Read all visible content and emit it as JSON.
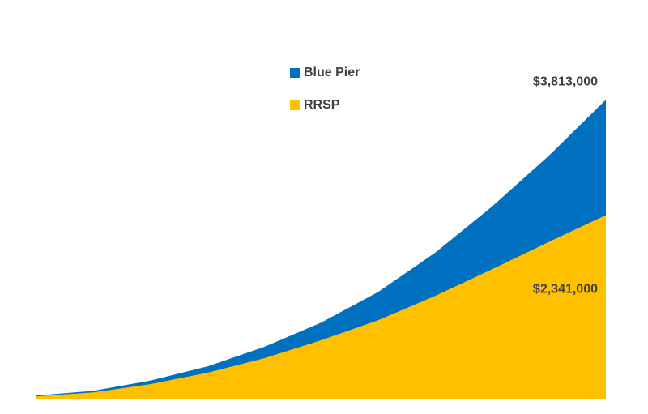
{
  "chart_data": {
    "type": "area",
    "categories": [
      null,
      null,
      null,
      null,
      null,
      null,
      null,
      null,
      null,
      null,
      null
    ],
    "series": [
      {
        "name": "Blue Pier",
        "color": "#0070c0",
        "values": [
          40000,
          100000,
          230000,
          410000,
          660000,
          970000,
          1360000,
          1860000,
          2450000,
          3100000,
          3813000
        ],
        "value_labels": [
          null,
          null,
          null,
          null,
          null,
          null,
          null,
          null,
          null,
          null,
          "$3,813,000"
        ]
      },
      {
        "name": "RRSP",
        "color": "#ffc000",
        "values": [
          30000,
          80000,
          185000,
          330000,
          515000,
          745000,
          1000000,
          1310000,
          1650000,
          2000000,
          2341000
        ],
        "value_labels": [
          null,
          null,
          null,
          null,
          null,
          null,
          null,
          null,
          null,
          null,
          "$2,341,000"
        ]
      }
    ],
    "ylim": [
      0,
      4000000
    ],
    "legend": "top-center"
  }
}
